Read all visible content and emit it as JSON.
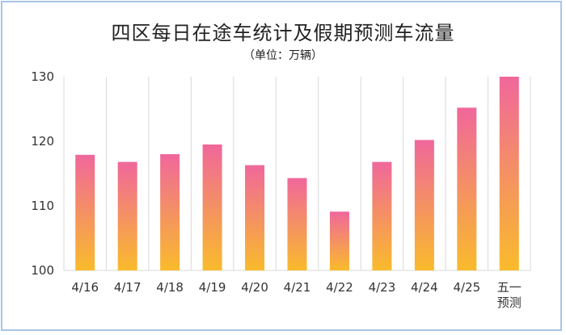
{
  "chart_data": {
    "type": "bar",
    "title": "四区每日在途车统计及假期预测车流量",
    "subtitle": "（单位：万辆）",
    "categories": [
      "4/16",
      "4/17",
      "4/18",
      "4/19",
      "4/20",
      "4/21",
      "4/22",
      "4/23",
      "4/24",
      "4/25",
      "五一\n预测"
    ],
    "values": [
      117.9,
      116.8,
      118.0,
      119.5,
      116.3,
      114.3,
      109.1,
      116.8,
      120.2,
      125.2,
      130
    ],
    "ylim": [
      100,
      130
    ],
    "yticks": [
      100,
      110,
      120,
      130
    ],
    "grid": "vertical",
    "colors": {
      "bar_top": "#f0679b",
      "bar_bottom": "#f9bb2c",
      "grid": "#d9d9d9",
      "frame": "#a9c4e6"
    }
  }
}
